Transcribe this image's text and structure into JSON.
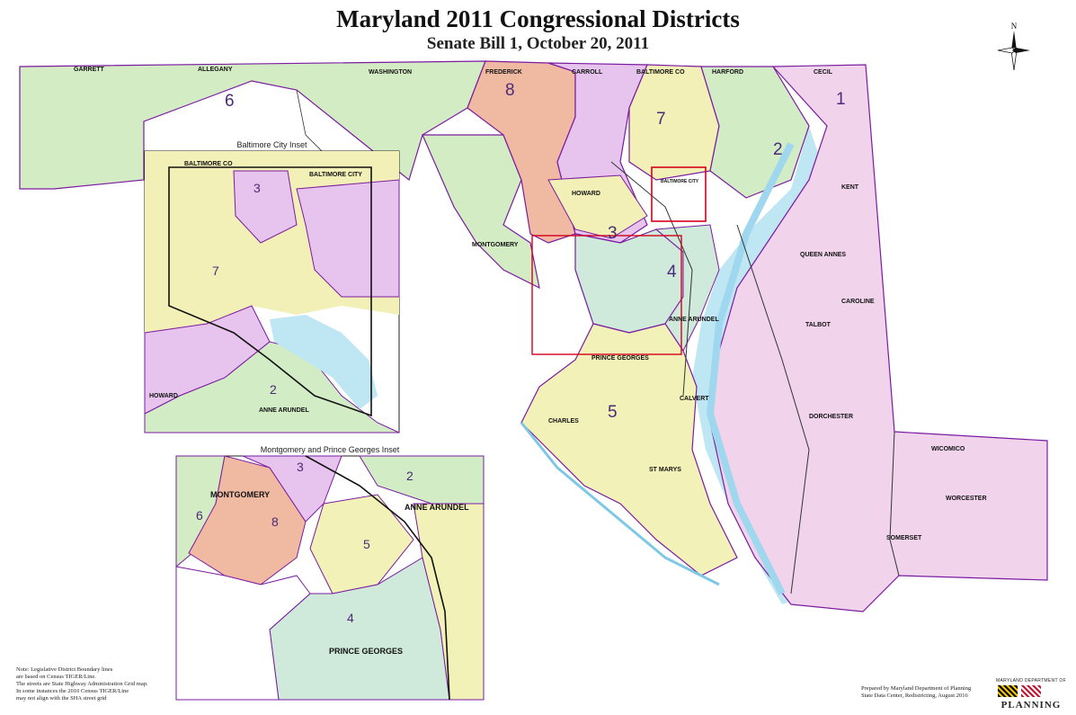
{
  "title": "Maryland 2011 Congressional Districts",
  "subtitle": "Senate Bill 1, October 20, 2011",
  "compass": {
    "label": "N",
    "icon": "compass-rose-icon"
  },
  "colors": {
    "water": "#bfe6f3",
    "district_1": "#f1d3ec",
    "district_2": "#d2ecc6",
    "district_3": "#e6c4ee",
    "district_4": "#cfe9da",
    "district_5": "#f2f2b8",
    "district_6": "#d3ecc4",
    "district_7": "#f2f0b6",
    "district_8": "#f0b9a2",
    "district_border": "#7a1ba0",
    "inset_frame": "#d6001c"
  },
  "main_map": {
    "counties": {
      "garrett": "GARRETT",
      "allegany": "ALLEGANY",
      "washington": "WASHINGTON",
      "frederick": "FREDERICK",
      "carroll": "CARROLL",
      "baltimore_co": "BALTIMORE CO",
      "harford": "HARFORD",
      "cecil": "CECIL",
      "kent": "KENT",
      "howard": "HOWARD",
      "baltimore_city": "BALTIMORE CITY",
      "montgomery": "MONTGOMERY",
      "queen_annes": "QUEEN ANNES",
      "caroline": "CAROLINE",
      "anne_arundel": "ANNE ARUNDEL",
      "talbot": "TALBOT",
      "prince_georges": "PRINCE GEORGES",
      "calvert": "CALVERT",
      "charles": "CHARLES",
      "dorchester": "DORCHESTER",
      "st_marys": "ST MARYS",
      "wicomico": "WICOMICO",
      "worcester": "WORCESTER",
      "somerset": "SOMERSET"
    },
    "districts": {
      "d1": "1",
      "d2": "2",
      "d3": "3",
      "d4": "4",
      "d5": "5",
      "d6": "6",
      "d7": "7",
      "d8": "8"
    }
  },
  "baltimore_inset": {
    "title": "Baltimore City Inset",
    "labels": {
      "baltimore_co": "BALTIMORE CO",
      "baltimore_city": "BALTIMORE CITY",
      "howard": "HOWARD",
      "anne_arundel": "ANNE ARUNDEL"
    },
    "districts": {
      "d3": "3",
      "d7": "7",
      "d2": "2"
    }
  },
  "montgomery_inset": {
    "title": "Montgomery and Prince Georges Inset",
    "labels": {
      "montgomery": "MONTGOMERY",
      "anne_arundel": "ANNE ARUNDEL",
      "prince_georges": "PRINCE GEORGES"
    },
    "districts": {
      "d3": "3",
      "d2": "2",
      "d6": "6",
      "d8": "8",
      "d5": "5",
      "d4": "4"
    }
  },
  "note": [
    "Note: Legislative District Boundary lines",
    "are based on Census TIGER/Line.",
    "The streets are State Highway Administration Grid map.",
    "In some instances the 2010 Census TIGER/Line",
    "may not align with the SHA street grid"
  ],
  "prepared_by": [
    "Prepared by Maryland Department of Planning",
    "State Data Center, Redistricting, August 2016"
  ],
  "logo": {
    "top": "MARYLAND DEPARTMENT OF",
    "word": "PLANNING"
  }
}
